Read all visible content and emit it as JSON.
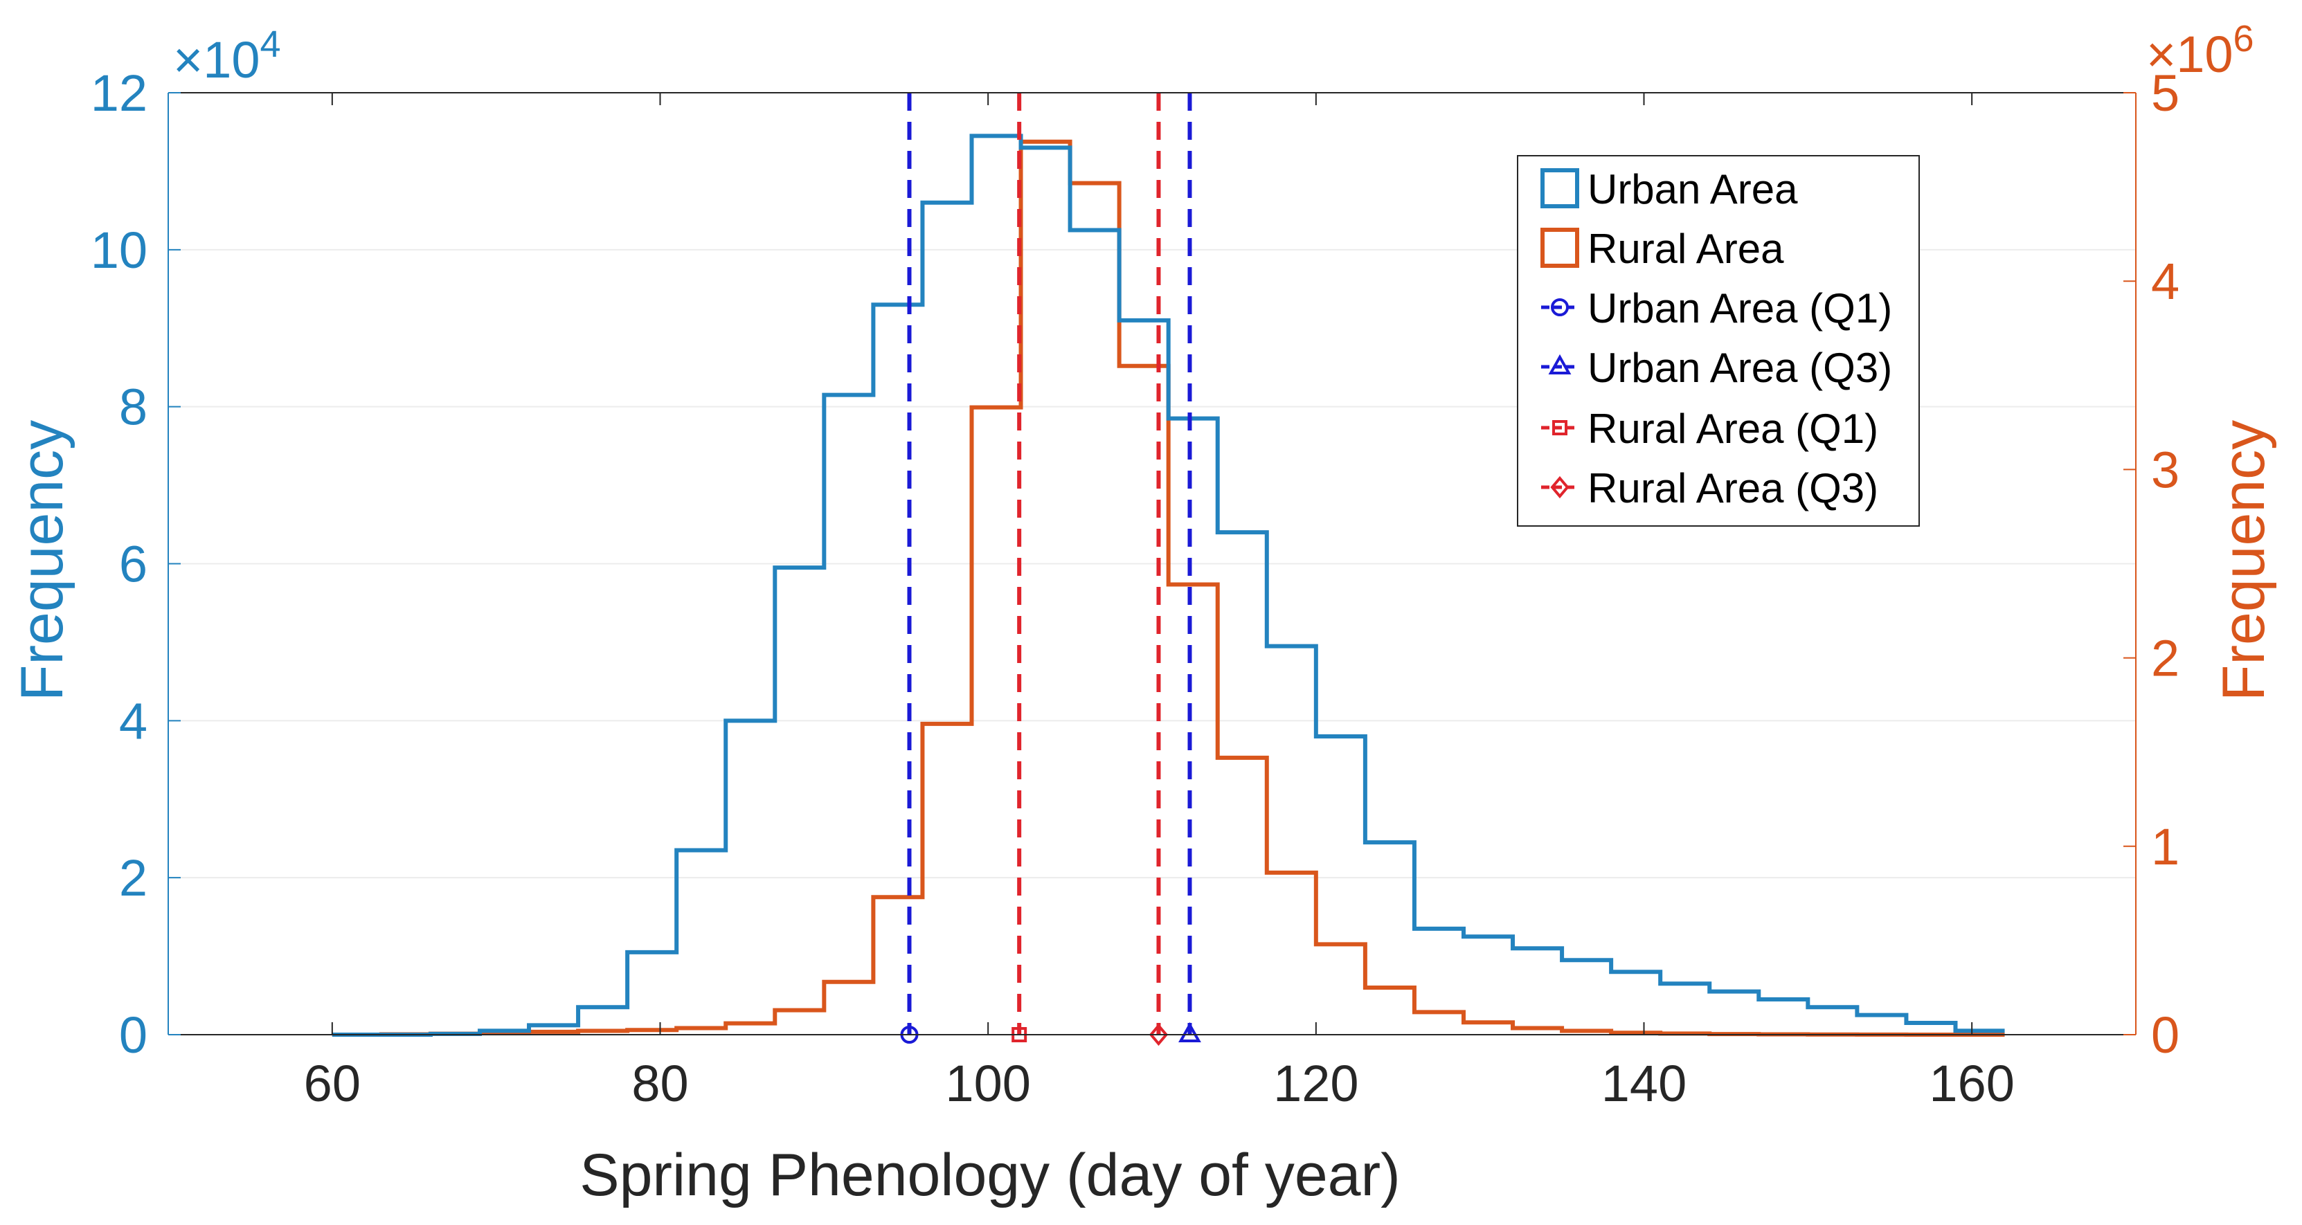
{
  "colors": {
    "urban": "#1f78b4",
    "urban_hist": "#2383bf",
    "rural": "#d9561c",
    "urban_q": "#1a1ad6",
    "rural_q": "#e0242c",
    "axis": "#262626",
    "grid": "#ececec"
  },
  "chart_data": {
    "type": "histogram",
    "xlabel": "Spring Phenology (day of year)",
    "ylabel_left": "Frequency",
    "ylabel_right": "Frequency",
    "xlim": [
      50,
      170
    ],
    "ylim_left": [
      0,
      120000
    ],
    "ylim_right": [
      0,
      5000000
    ],
    "left_exponent": "×10",
    "left_exponent_power": "4",
    "right_exponent": "×10",
    "right_exponent_power": "6",
    "x_ticks": [
      60,
      80,
      100,
      120,
      140,
      160
    ],
    "x_tick_labels": [
      "60",
      "80",
      "100",
      "120",
      "140",
      "160"
    ],
    "y_left_ticks": [
      0,
      20000,
      40000,
      60000,
      80000,
      100000,
      120000
    ],
    "y_left_tick_labels": [
      "0",
      "2",
      "4",
      "6",
      "8",
      "10",
      "12"
    ],
    "y_right_ticks": [
      0,
      1000000,
      2000000,
      3000000,
      4000000,
      5000000
    ],
    "y_right_tick_labels": [
      "0",
      "1",
      "2",
      "3",
      "4",
      "5"
    ],
    "bin_edges": [
      60,
      63,
      66,
      69,
      72,
      75,
      78,
      81,
      84,
      87,
      90,
      93,
      96,
      99,
      102,
      105,
      108,
      111,
      114,
      117,
      120,
      123,
      126,
      129,
      132,
      135,
      138,
      141,
      144,
      147,
      150,
      153,
      156,
      159,
      162
    ],
    "series": [
      {
        "name": "Urban Area",
        "axis": "left",
        "counts": [
          0,
          0,
          100,
          500,
          1200,
          3500,
          10500,
          23500,
          40000,
          59500,
          81500,
          93000,
          106000,
          114500,
          113000,
          102500,
          91000,
          78500,
          64000,
          49500,
          38000,
          24500,
          13500,
          12500,
          11000,
          9500,
          8000,
          6500,
          5500,
          4500,
          3500,
          2500,
          1500,
          500
        ]
      },
      {
        "name": "Rural Area",
        "axis": "right",
        "counts": [
          0,
          2000,
          5000,
          10000,
          15000,
          20000,
          25000,
          35000,
          60000,
          130000,
          280000,
          730000,
          1650000,
          3330000,
          4740000,
          4520000,
          3550000,
          2390000,
          1470000,
          860000,
          480000,
          250000,
          120000,
          65000,
          35000,
          20000,
          10000,
          6000,
          3000,
          2000,
          1000,
          500,
          200,
          100
        ]
      }
    ],
    "quartiles": [
      {
        "name": "Urban Area (Q1)",
        "x": 95.2,
        "marker": "circle"
      },
      {
        "name": "Urban Area (Q3)",
        "x": 112.3,
        "marker": "triangle"
      },
      {
        "name": "Rural Area (Q1)",
        "x": 101.9,
        "marker": "square"
      },
      {
        "name": "Rural Area (Q3)",
        "x": 110.4,
        "marker": "diamond"
      }
    ],
    "legend_position": "top-right",
    "legend": [
      "Urban Area",
      "Rural Area",
      "Urban Area (Q1)",
      "Urban Area (Q3)",
      "Rural Area (Q1)",
      "Rural Area (Q3)"
    ]
  }
}
